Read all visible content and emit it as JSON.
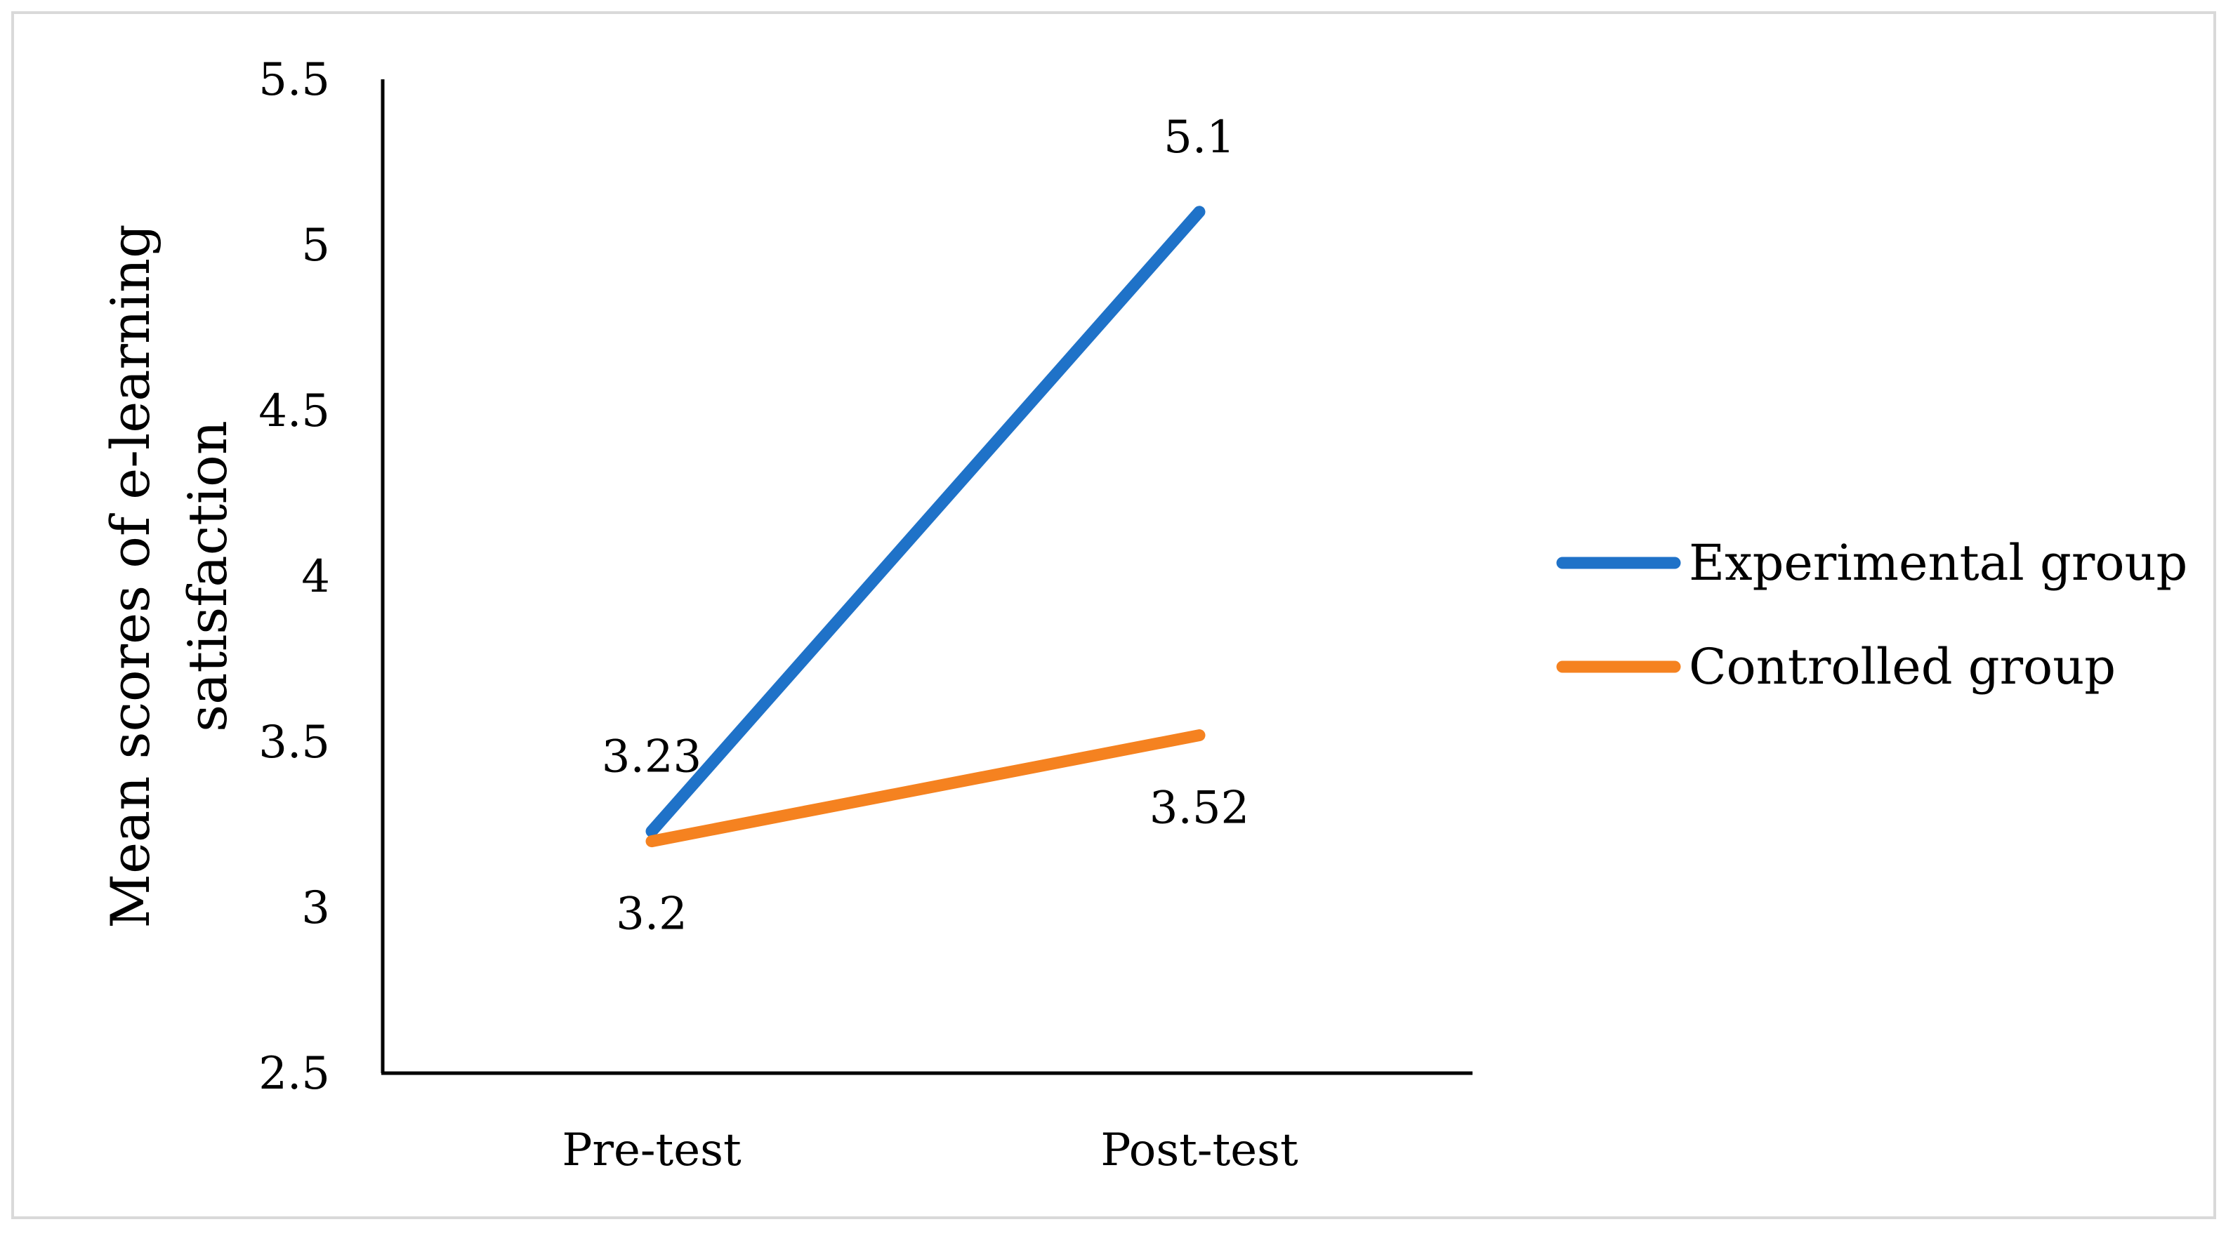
{
  "chart_data": {
    "type": "line",
    "categories": [
      "Pre-test",
      "Post-test"
    ],
    "series": [
      {
        "name": "Experimental group",
        "values": [
          3.23,
          5.1
        ],
        "color": "#1f72c8",
        "labels": [
          "3.23",
          "5.1"
        ]
      },
      {
        "name": "Controlled group",
        "values": [
          3.2,
          3.52
        ],
        "color": "#f58220",
        "labels": [
          "3.2",
          "3.52"
        ]
      }
    ],
    "title": "",
    "xlabel": "",
    "ylabel_lines": [
      "Mean scores of e-learning",
      "satisfaction"
    ],
    "ylim": [
      2.5,
      5.5
    ],
    "yticks": [
      "2.5",
      "3",
      "3.5",
      "4",
      "4.5",
      "5",
      "5.5"
    ],
    "grid": false,
    "legend_position": "right"
  }
}
